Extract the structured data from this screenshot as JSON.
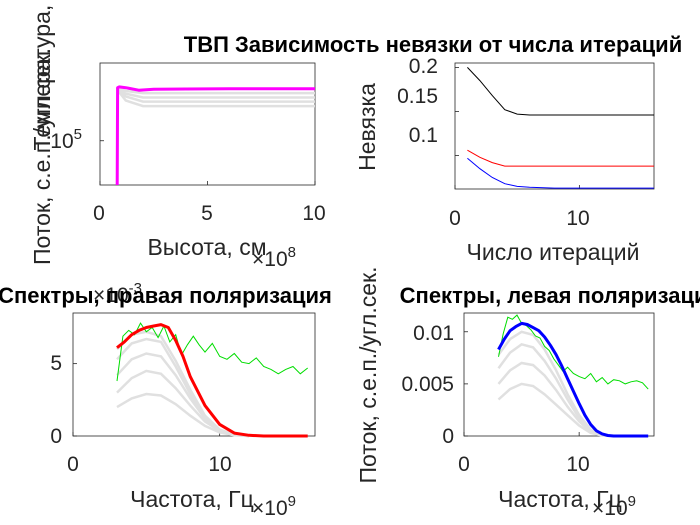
{
  "chart_data": [
    {
      "id": "temp",
      "type": "line",
      "title": "ТВП  Зависимость невязки от числа итераций",
      "xlabel": "Высота, см",
      "ylabel": "Температура, K",
      "x_exponent": "×10",
      "x_exponent_power": "8",
      "xlim": [
        0,
        10
      ],
      "ylog": true,
      "ylim": [
        40000,
        500000
      ],
      "xticks": [
        {
          "v": 0,
          "t": "0"
        },
        {
          "v": 5,
          "t": "5"
        },
        {
          "v": 10,
          "t": "10"
        }
      ],
      "yticks": [
        {
          "v": 100000,
          "t": "10"
        }
      ],
      "ytick_power": "5",
      "grey_series": [
        {
          "x": [
            0.8,
            0.85,
            1.2,
            2,
            3,
            5,
            10
          ],
          "y": [
            300000,
            280000,
            230000,
            205000,
            205000,
            205000,
            205000
          ]
        },
        {
          "x": [
            0.8,
            0.85,
            1.2,
            2,
            3,
            5,
            10
          ],
          "y": [
            300000,
            285000,
            250000,
            225000,
            225000,
            225000,
            225000
          ]
        },
        {
          "x": [
            0.8,
            0.85,
            1.2,
            2,
            3,
            5,
            10
          ],
          "y": [
            300000,
            290000,
            265000,
            245000,
            245000,
            245000,
            245000
          ]
        },
        {
          "x": [
            0.8,
            0.85,
            1.2,
            2,
            3,
            5,
            10
          ],
          "y": [
            300000,
            295000,
            280000,
            268000,
            268000,
            268000,
            268000
          ]
        }
      ],
      "main_series": {
        "x": [
          0.8,
          0.82,
          0.9,
          1.2,
          1.8,
          2.5,
          4,
          6,
          10
        ],
        "y": [
          40000,
          300000,
          305000,
          300000,
          285000,
          290000,
          292000,
          293000,
          293000
        ]
      },
      "main_color": "#ff00ff"
    },
    {
      "id": "resid",
      "type": "line",
      "xlabel": "Число итераций",
      "ylabel": "Невязка",
      "xlim": [
        0,
        16
      ],
      "ylim": [
        0.062,
        0.205
      ],
      "xticks": [
        {
          "v": 0,
          "t": "0"
        },
        {
          "v": 10,
          "t": "10"
        }
      ],
      "yticks": [
        {
          "v": 0.1,
          "t": "0.1"
        },
        {
          "v": 0.15,
          "t": "0.15"
        },
        {
          "v": 0.2,
          "t": "0.2"
        }
      ],
      "series": [
        {
          "color": "#000000",
          "x": [
            1,
            2,
            3,
            4,
            5,
            6,
            8,
            10,
            12,
            14,
            16
          ],
          "y": [
            0.2,
            0.185,
            0.168,
            0.152,
            0.147,
            0.146,
            0.146,
            0.146,
            0.146,
            0.146,
            0.146
          ]
        },
        {
          "color": "#ff0000",
          "x": [
            1,
            2,
            3,
            4,
            5,
            6,
            8,
            10,
            12,
            14,
            16
          ],
          "y": [
            0.106,
            0.098,
            0.092,
            0.088,
            0.088,
            0.088,
            0.088,
            0.088,
            0.088,
            0.088,
            0.088
          ]
        },
        {
          "color": "#0000ff",
          "x": [
            1,
            2,
            3,
            4,
            5,
            6,
            8,
            10,
            12,
            14,
            16
          ],
          "y": [
            0.097,
            0.085,
            0.075,
            0.068,
            0.065,
            0.064,
            0.063,
            0.063,
            0.063,
            0.063,
            0.063
          ]
        }
      ]
    },
    {
      "id": "spec_r",
      "type": "line",
      "title": "Спектры, правая поляризация",
      "xlabel": "Частота, Гц",
      "ylabel": "Поток, с.е.п./угл.сек.",
      "x_exponent": "×10",
      "x_exponent_power": "9",
      "y_exponent": "×10",
      "y_exponent_power": "-3",
      "xlim": [
        0,
        16.5
      ],
      "ylim": [
        0,
        8.5
      ],
      "xticks": [
        {
          "v": 0,
          "t": "0"
        },
        {
          "v": 10,
          "t": "10"
        }
      ],
      "yticks": [
        {
          "v": 0,
          "t": "0"
        },
        {
          "v": 5,
          "t": "5"
        }
      ],
      "grey_series": [
        {
          "x": [
            3,
            4,
            5,
            6,
            7,
            8,
            9,
            10,
            11,
            12
          ],
          "y": [
            2,
            2.6,
            2.9,
            2.8,
            2.2,
            1.4,
            0.7,
            0.25,
            0.05,
            0
          ]
        },
        {
          "x": [
            3,
            4,
            5,
            6,
            7,
            8,
            9,
            10,
            11,
            12
          ],
          "y": [
            3,
            4.0,
            4.5,
            4.3,
            3.3,
            2.1,
            1.0,
            0.35,
            0.08,
            0
          ]
        },
        {
          "x": [
            3,
            4,
            5,
            6,
            7,
            8,
            9,
            10,
            11,
            12
          ],
          "y": [
            4.2,
            5.3,
            5.7,
            5.5,
            4.2,
            2.6,
            1.2,
            0.4,
            0.1,
            0
          ]
        },
        {
          "x": [
            3,
            4,
            5,
            6,
            7,
            8,
            9,
            10,
            11,
            12
          ],
          "y": [
            5.3,
            6.4,
            6.7,
            6.5,
            4.8,
            2.9,
            1.3,
            0.4,
            0.1,
            0
          ]
        },
        {
          "x": [
            3,
            4,
            5,
            6,
            7,
            8,
            9,
            10,
            11,
            12
          ],
          "y": [
            6.0,
            7.0,
            7.2,
            6.9,
            5.2,
            3.2,
            1.4,
            0.45,
            0.1,
            0
          ]
        }
      ],
      "main_series": {
        "x": [
          3,
          3.5,
          4,
          4.5,
          5,
          5.5,
          6,
          6.5,
          7,
          7.5,
          8,
          9,
          10,
          11,
          12,
          13,
          16
        ],
        "y": [
          6.1,
          6.5,
          7.0,
          7.3,
          7.5,
          7.6,
          7.7,
          7.5,
          6.6,
          5.5,
          4.1,
          2.1,
          0.8,
          0.2,
          0.05,
          0,
          0
        ]
      },
      "main_color": "#ff0000",
      "obs_series": {
        "x": [
          3,
          3.4,
          3.8,
          4.2,
          4.6,
          5,
          5.4,
          5.8,
          6.2,
          6.6,
          7,
          7.4,
          7.8,
          8.2,
          8.6,
          9,
          9.5,
          10,
          10.5,
          11,
          11.5,
          12,
          12.5,
          13,
          13.5,
          14,
          14.5,
          15,
          15.5,
          16
        ],
        "y": [
          3.8,
          6.9,
          7.3,
          7.0,
          7.8,
          7.2,
          7.5,
          6.8,
          7.6,
          6.5,
          7.0,
          5.6,
          6.3,
          6.9,
          6.3,
          5.8,
          6.4,
          5.5,
          5.3,
          5.7,
          5.1,
          5.0,
          5.4,
          4.8,
          4.6,
          4.3,
          4.6,
          4.8,
          4.3,
          4.7
        ]
      },
      "obs_color": "#00dd00"
    },
    {
      "id": "spec_l",
      "type": "line",
      "title": "Спектры, левая поляризация",
      "xlabel": "Частота, Гц",
      "ylabel": "Поток, с.е.п./угл.сек.",
      "x_exponent": "×10",
      "x_exponent_power": "9",
      "xlim": [
        0,
        16.5
      ],
      "ylim": [
        0,
        0.0118
      ],
      "xticks": [
        {
          "v": 0,
          "t": "0"
        },
        {
          "v": 10,
          "t": "10"
        }
      ],
      "yticks": [
        {
          "v": 0,
          "t": "0"
        },
        {
          "v": 0.005,
          "t": "0.005"
        },
        {
          "v": 0.01,
          "t": "0.01"
        }
      ],
      "grey_series": [
        {
          "x": [
            3,
            4,
            5,
            6,
            7,
            8,
            9,
            10,
            11,
            12,
            13
          ],
          "y": [
            0.0035,
            0.0045,
            0.005,
            0.0048,
            0.004,
            0.003,
            0.002,
            0.001,
            0.0003,
            5e-05,
            0
          ]
        },
        {
          "x": [
            3,
            4,
            5,
            6,
            7,
            8,
            9,
            10,
            11,
            12,
            13
          ],
          "y": [
            0.005,
            0.0063,
            0.007,
            0.0068,
            0.0058,
            0.0044,
            0.0028,
            0.0014,
            0.0004,
            0.0001,
            0
          ]
        },
        {
          "x": [
            3,
            4,
            5,
            6,
            7,
            8,
            9,
            10,
            11,
            12,
            13
          ],
          "y": [
            0.0065,
            0.008,
            0.0088,
            0.0085,
            0.0072,
            0.0055,
            0.0035,
            0.0017,
            0.0005,
            0.0001,
            0
          ]
        },
        {
          "x": [
            3,
            4,
            5,
            6,
            7,
            8,
            9,
            10,
            11,
            12,
            13
          ],
          "y": [
            0.0078,
            0.0093,
            0.01,
            0.0097,
            0.0083,
            0.0063,
            0.004,
            0.002,
            0.0006,
            0.0001,
            0
          ]
        }
      ],
      "main_series": {
        "x": [
          3,
          3.5,
          4,
          4.5,
          5,
          5.5,
          6,
          6.5,
          7,
          7.5,
          8,
          8.5,
          9,
          9.5,
          10,
          10.5,
          11,
          11.5,
          12,
          12.5,
          13,
          16
        ],
        "y": [
          0.0083,
          0.0093,
          0.0101,
          0.0105,
          0.0108,
          0.0107,
          0.0104,
          0.0101,
          0.0095,
          0.0087,
          0.0078,
          0.0067,
          0.0055,
          0.0043,
          0.0031,
          0.002,
          0.0011,
          0.0005,
          0.0002,
          5e-05,
          0,
          0
        ]
      },
      "main_color": "#0000ff",
      "obs_series": {
        "x": [
          3,
          3.4,
          3.8,
          4.2,
          4.6,
          5,
          5.4,
          5.8,
          6.2,
          6.6,
          7,
          7.4,
          7.8,
          8.2,
          8.6,
          9,
          9.5,
          10,
          10.5,
          11,
          11.5,
          12,
          12.5,
          13,
          13.5,
          14,
          14.5,
          15,
          15.5,
          16
        ],
        "y": [
          0.0076,
          0.0098,
          0.0114,
          0.0112,
          0.0116,
          0.0108,
          0.0106,
          0.0102,
          0.0096,
          0.0094,
          0.0086,
          0.0082,
          0.0074,
          0.0068,
          0.0062,
          0.0066,
          0.006,
          0.0057,
          0.0055,
          0.006,
          0.0052,
          0.0056,
          0.005,
          0.0054,
          0.0053,
          0.005,
          0.0052,
          0.0053,
          0.0051,
          0.0045
        ]
      },
      "obs_color": "#00dd00"
    }
  ]
}
